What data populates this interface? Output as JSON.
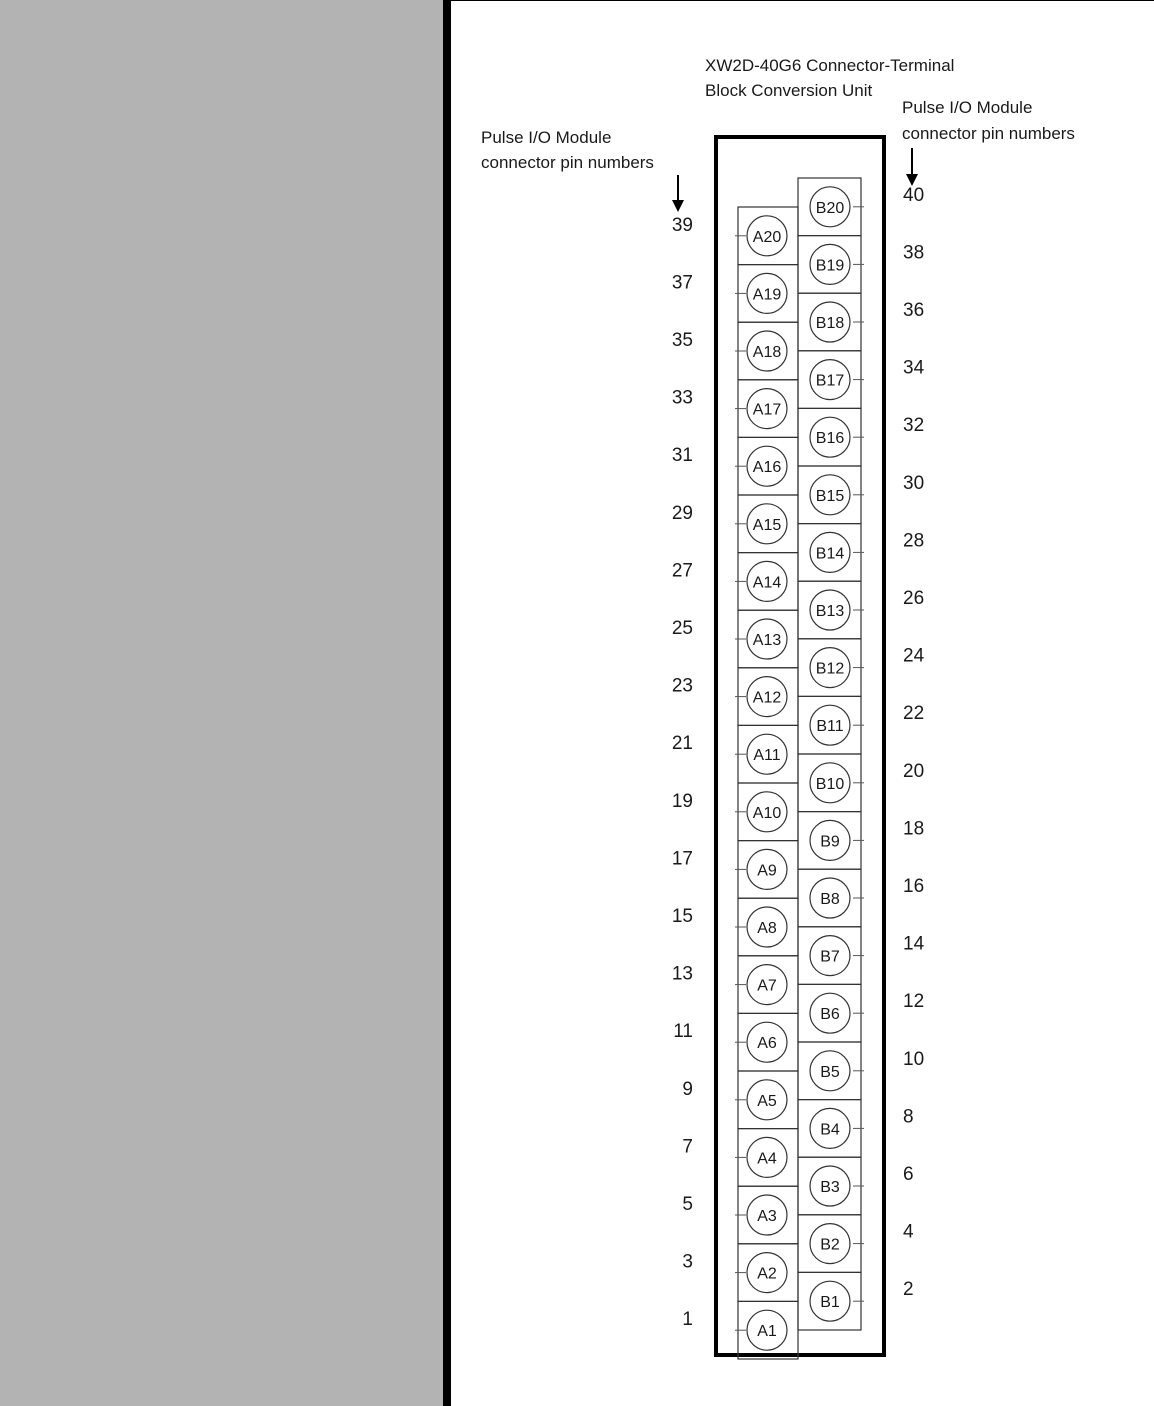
{
  "title_line1": "XW2D-40G6 Connector-Terminal",
  "title_line2": "Block Conversion Unit",
  "left_label_line1": "Pulse I/O Module",
  "left_label_line2": "connector pin numbers",
  "right_label_line1": "Pulse I/O Module",
  "right_label_line2": "connector pin numbers",
  "a_terminals": [
    {
      "label": "A1",
      "pin": "1"
    },
    {
      "label": "A2",
      "pin": "3"
    },
    {
      "label": "A3",
      "pin": "5"
    },
    {
      "label": "A4",
      "pin": "7"
    },
    {
      "label": "A5",
      "pin": "9"
    },
    {
      "label": "A6",
      "pin": "11"
    },
    {
      "label": "A7",
      "pin": "13"
    },
    {
      "label": "A8",
      "pin": "15"
    },
    {
      "label": "A9",
      "pin": "17"
    },
    {
      "label": "A10",
      "pin": "19"
    },
    {
      "label": "A11",
      "pin": "21"
    },
    {
      "label": "A12",
      "pin": "23"
    },
    {
      "label": "A13",
      "pin": "25"
    },
    {
      "label": "A14",
      "pin": "27"
    },
    {
      "label": "A15",
      "pin": "29"
    },
    {
      "label": "A16",
      "pin": "31"
    },
    {
      "label": "A17",
      "pin": "33"
    },
    {
      "label": "A18",
      "pin": "35"
    },
    {
      "label": "A19",
      "pin": "37"
    },
    {
      "label": "A20",
      "pin": "39"
    }
  ],
  "b_terminals": [
    {
      "label": "B1",
      "pin": "2"
    },
    {
      "label": "B2",
      "pin": "4"
    },
    {
      "label": "B3",
      "pin": "6"
    },
    {
      "label": "B4",
      "pin": "8"
    },
    {
      "label": "B5",
      "pin": "10"
    },
    {
      "label": "B6",
      "pin": "12"
    },
    {
      "label": "B7",
      "pin": "14"
    },
    {
      "label": "B8",
      "pin": "16"
    },
    {
      "label": "B9",
      "pin": "18"
    },
    {
      "label": "B10",
      "pin": "20"
    },
    {
      "label": "B11",
      "pin": "22"
    },
    {
      "label": "B12",
      "pin": "24"
    },
    {
      "label": "B13",
      "pin": "26"
    },
    {
      "label": "B14",
      "pin": "28"
    },
    {
      "label": "B15",
      "pin": "30"
    },
    {
      "label": "B16",
      "pin": "32"
    },
    {
      "label": "B17",
      "pin": "34"
    },
    {
      "label": "B18",
      "pin": "36"
    },
    {
      "label": "B19",
      "pin": "38"
    },
    {
      "label": "B20",
      "pin": "40"
    }
  ]
}
